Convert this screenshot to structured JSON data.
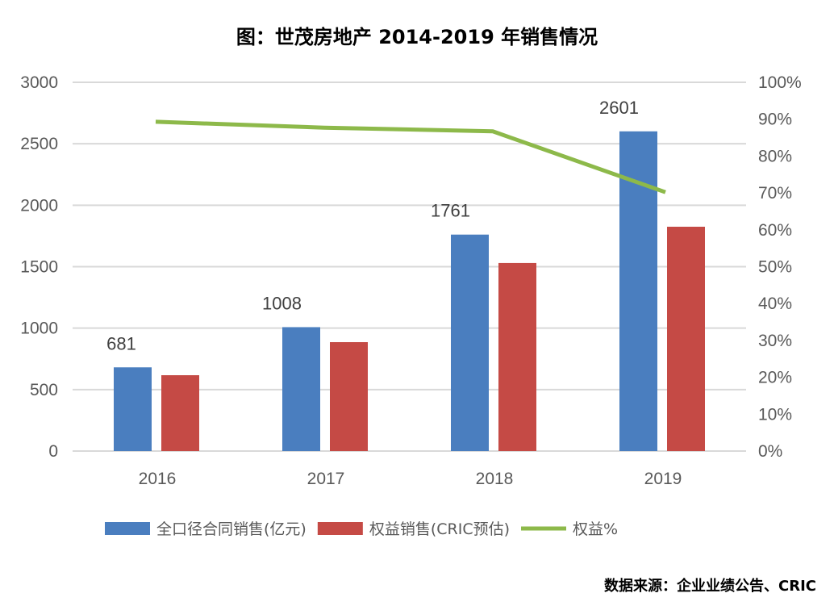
{
  "title": "图：世茂房地产 2014-2019 年销售情况",
  "source": "数据来源：企业业绩公告、CRIC",
  "chart_data": {
    "type": "bar",
    "title": "图：世茂房地产 2014-2019 年销售情况",
    "categories": [
      "2016",
      "2017",
      "2018",
      "2019"
    ],
    "y_left": {
      "range": [
        0,
        3000
      ],
      "ticks": [
        "0",
        "500",
        "1000",
        "1500",
        "2000",
        "2500",
        "3000"
      ]
    },
    "y_right": {
      "range": [
        0,
        100
      ],
      "ticks": [
        "0%",
        "10%",
        "20%",
        "30%",
        "40%",
        "50%",
        "60%",
        "70%",
        "80%",
        "90%",
        "100%"
      ]
    },
    "grid": true,
    "legend": "bottom",
    "series": [
      {
        "name": "全口径合同销售(亿元)",
        "type": "bar",
        "axis": "left",
        "color": "#4A7EBF",
        "values": [
          681,
          1008,
          1761,
          2601
        ],
        "labels": [
          "681",
          "1008",
          "1761",
          "2601"
        ]
      },
      {
        "name": "权益销售(CRIC预估)",
        "type": "bar",
        "axis": "left",
        "color": "#C54A45",
        "values": [
          617,
          886,
          1530,
          1825
        ]
      },
      {
        "name": "权益%",
        "type": "line",
        "axis": "right",
        "color": "#8DB94A",
        "values": [
          89.3,
          87.7,
          86.7,
          70.2
        ]
      }
    ]
  }
}
